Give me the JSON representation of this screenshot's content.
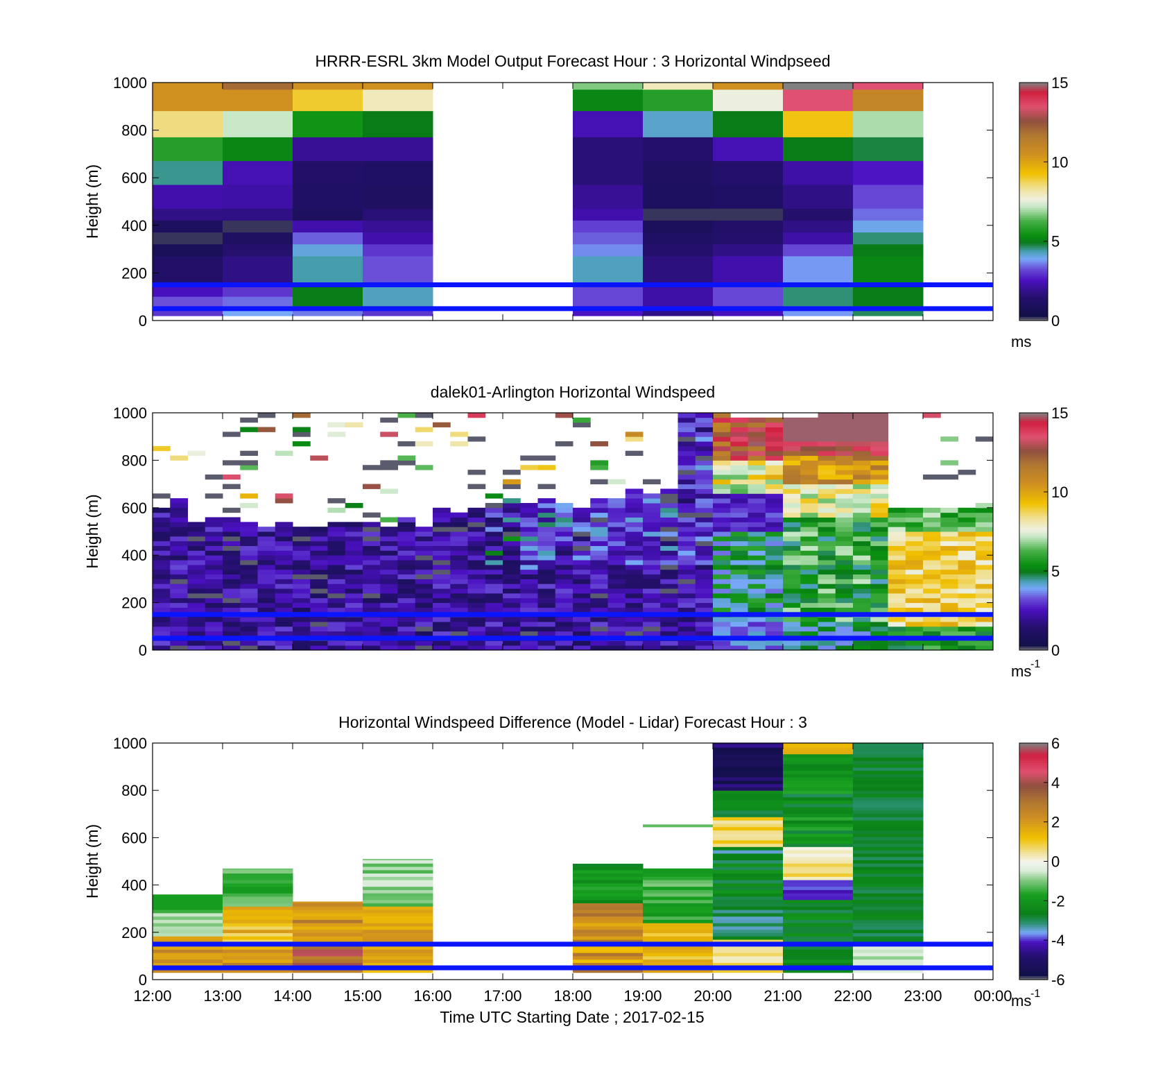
{
  "chart_data": [
    {
      "type": "heatmap",
      "title": "HRRR-ESRL 3km Model Output   Forecast Hour : 3 Horizontal Windpseed",
      "ylabel": "Height (m)",
      "yticks": [
        "0",
        "200",
        "400",
        "600",
        "800",
        "1000"
      ],
      "ylim": [
        0,
        1000
      ],
      "xlim_hours": [
        12,
        24
      ],
      "colorbar": {
        "ticks": [
          "0",
          "5",
          "10",
          "15"
        ],
        "range": [
          0,
          15
        ],
        "unit": "ms",
        "unit_sup": ""
      },
      "reference_lines_m": [
        150,
        50
      ],
      "grid": false
    },
    {
      "type": "heatmap",
      "title": "dalek01-Arlington  Horizontal Windspeed",
      "ylabel": "Height (m)",
      "yticks": [
        "0",
        "200",
        "400",
        "600",
        "800",
        "1000"
      ],
      "ylim": [
        0,
        1000
      ],
      "xlim_hours": [
        12,
        24
      ],
      "colorbar": {
        "ticks": [
          "0",
          "5",
          "10",
          "15"
        ],
        "range": [
          0,
          15
        ],
        "unit": "ms",
        "unit_sup": "-1"
      },
      "reference_lines_m": [
        150,
        50
      ],
      "grid": false
    },
    {
      "type": "heatmap",
      "title": "Horizontal Windspeed Difference (Model - Lidar) Forecast Hour : 3",
      "ylabel": "Height (m)",
      "yticks": [
        "0",
        "200",
        "400",
        "600",
        "800",
        "1000"
      ],
      "ylim": [
        0,
        1000
      ],
      "xlim_hours": [
        12,
        24
      ],
      "xticks": [
        "12:00",
        "13:00",
        "14:00",
        "15:00",
        "16:00",
        "17:00",
        "18:00",
        "19:00",
        "20:00",
        "21:00",
        "22:00",
        "23:00",
        "00:00"
      ],
      "xlabel": "Time UTC  Starting Date ; 2017-02-15",
      "colorbar": {
        "ticks": [
          "-6",
          "-4",
          "-2",
          "0",
          "2",
          "4",
          "6"
        ],
        "range": [
          -6,
          6
        ],
        "unit": "ms",
        "unit_sup": "-1"
      },
      "reference_lines_m": [
        150,
        50
      ],
      "grid": false
    }
  ]
}
